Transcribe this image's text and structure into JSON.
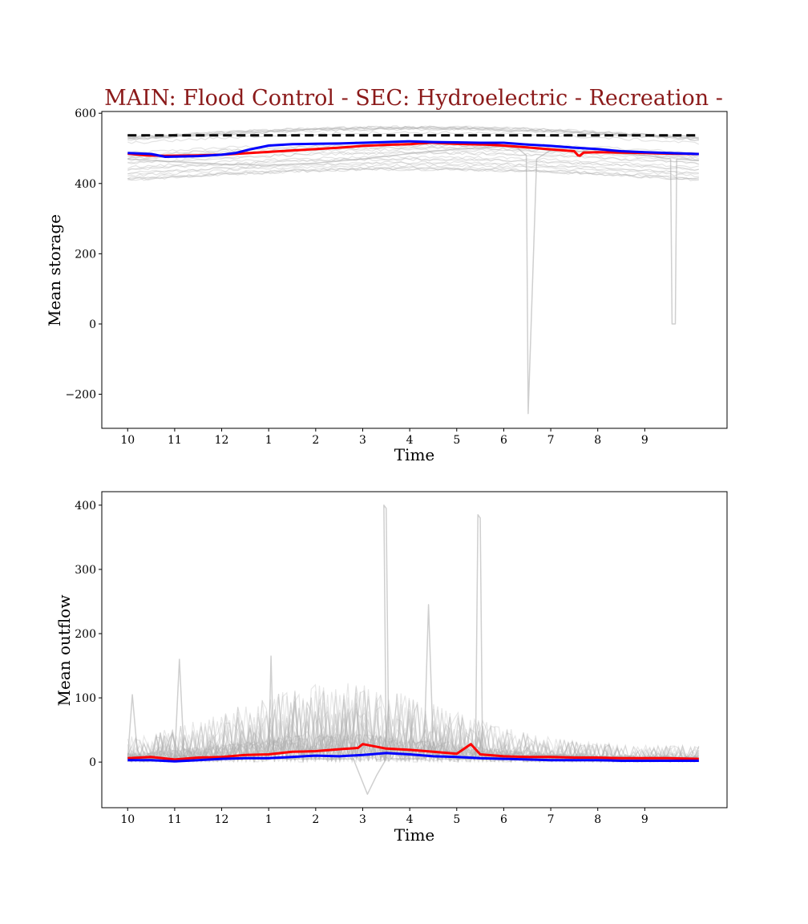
{
  "title": "MAIN: Flood Control - SEC: Hydroelectric - Recreation -",
  "colors": {
    "title": "#8b1a1a",
    "red": "#ff0000",
    "blue": "#0000ff",
    "ensemble": "#a0a0a0",
    "reference": "#000000"
  },
  "chart_data": [
    {
      "type": "line",
      "xlabel": "Time",
      "ylabel": "Mean storage",
      "xticks": [
        "10",
        "11",
        "12",
        "1",
        "2",
        "3",
        "4",
        "5",
        "6",
        "7",
        "8",
        "9"
      ],
      "xlim": [
        -0.55,
        12.75
      ],
      "ylim": [
        -297,
        605
      ],
      "yticks": [
        600,
        400,
        200,
        0,
        -200
      ],
      "ytick_labels": [
        "600",
        "400",
        "200",
        "0",
        "−200"
      ],
      "reference_line": {
        "y": 537,
        "style": "dashed",
        "color": "black"
      },
      "grid": false,
      "series": [
        {
          "color": "#ff0000",
          "x": [
            0,
            0.4,
            0.8,
            1.5,
            2,
            2.5,
            3,
            3.5,
            4,
            4.5,
            5,
            5.5,
            6,
            6.2,
            6.35,
            6.42,
            6.5,
            6.8,
            7.2,
            7.6,
            8,
            8.5,
            9,
            9.5,
            9.58,
            9.62,
            9.7,
            10,
            10.5,
            11,
            11.5,
            12.15
          ],
          "y": [
            485,
            480,
            479,
            480,
            482,
            486,
            490,
            494,
            498,
            502,
            507,
            510,
            512,
            514,
            515,
            516,
            516,
            514,
            512,
            511,
            508,
            503,
            497,
            492,
            480,
            479,
            488,
            489,
            488,
            487,
            485,
            484
          ]
        },
        {
          "color": "#0000ff",
          "x": [
            0,
            0.5,
            0.8,
            1.5,
            2,
            2.3,
            2.6,
            3,
            3.5,
            4,
            4.5,
            5,
            5.5,
            6,
            6.5,
            7,
            7.5,
            8,
            8.5,
            9,
            9.5,
            10,
            10.5,
            11,
            11.5,
            12.15
          ],
          "y": [
            487,
            484,
            476,
            478,
            482,
            487,
            497,
            508,
            512,
            513,
            514,
            516,
            518,
            520,
            518,
            517,
            516,
            516,
            511,
            507,
            502,
            498,
            492,
            489,
            487,
            484
          ]
        },
        {
          "color": "#a0a0a0",
          "x": [
            0,
            1,
            2,
            3,
            4,
            5,
            6,
            7,
            8,
            8.3,
            8.48,
            8.52,
            8.7,
            9,
            10,
            11,
            11.55,
            11.58,
            11.65,
            11.68,
            12.15
          ],
          "y": [
            470,
            462,
            455,
            452,
            458,
            470,
            485,
            498,
            505,
            500,
            480,
            -255,
            470,
            495,
            490,
            480,
            470,
            0,
            0,
            470,
            465
          ]
        }
      ]
    },
    {
      "type": "line",
      "xlabel": "Time",
      "ylabel": "Mean outflow",
      "xticks": [
        "10",
        "11",
        "12",
        "1",
        "2",
        "3",
        "4",
        "5",
        "6",
        "7",
        "8",
        "9"
      ],
      "xlim": [
        -0.55,
        12.75
      ],
      "ylim": [
        -71,
        421
      ],
      "yticks": [
        400,
        300,
        200,
        100,
        0
      ],
      "ytick_labels": [
        "400",
        "300",
        "200",
        "100",
        "0"
      ],
      "grid": false,
      "series": [
        {
          "color": "#ff0000",
          "x": [
            0,
            0.5,
            1,
            1.5,
            2,
            2.5,
            3,
            3.5,
            4,
            4.5,
            4.9,
            5,
            5.5,
            6,
            6.5,
            7,
            7.3,
            7.5,
            8,
            8.5,
            9,
            9.5,
            10,
            10.5,
            11,
            11.5,
            12.15
          ],
          "y": [
            6,
            8,
            4,
            7,
            8,
            11,
            12,
            16,
            17,
            20,
            22,
            28,
            21,
            19,
            16,
            13,
            28,
            12,
            9,
            8,
            8,
            7,
            7,
            6,
            6,
            6,
            5
          ]
        },
        {
          "color": "#0000ff",
          "x": [
            0,
            0.5,
            1,
            1.5,
            2,
            2.5,
            3,
            3.5,
            4,
            4.5,
            5,
            5.5,
            6,
            6.5,
            7,
            7.5,
            8,
            8.5,
            9,
            9.5,
            10,
            10.5,
            11,
            11.5,
            12.15
          ],
          "y": [
            3,
            3,
            1,
            3,
            5,
            6,
            6,
            8,
            10,
            9,
            11,
            14,
            12,
            9,
            8,
            6,
            5,
            4,
            3,
            3,
            3,
            2,
            2,
            2,
            2
          ]
        },
        {
          "color": "#a0a0a0",
          "x": [
            0,
            0.1,
            0.2,
            0.3,
            1,
            1.1,
            1.2,
            1.3,
            3,
            3.05,
            3.1,
            3.15,
            4.8,
            5.1,
            5.3,
            5.5,
            5.45,
            5.5,
            5.55,
            5.6,
            6.3,
            6.4,
            6.5,
            6.6,
            7.4,
            7.45,
            7.5,
            7.55,
            8,
            9,
            10,
            11,
            12.15
          ],
          "y": [
            5,
            105,
            20,
            5,
            5,
            160,
            10,
            5,
            5,
            165,
            20,
            5,
            5,
            -50,
            -20,
            5,
            400,
            395,
            50,
            5,
            5,
            245,
            20,
            5,
            5,
            385,
            380,
            5,
            8,
            10,
            8,
            6,
            5
          ]
        }
      ]
    }
  ]
}
